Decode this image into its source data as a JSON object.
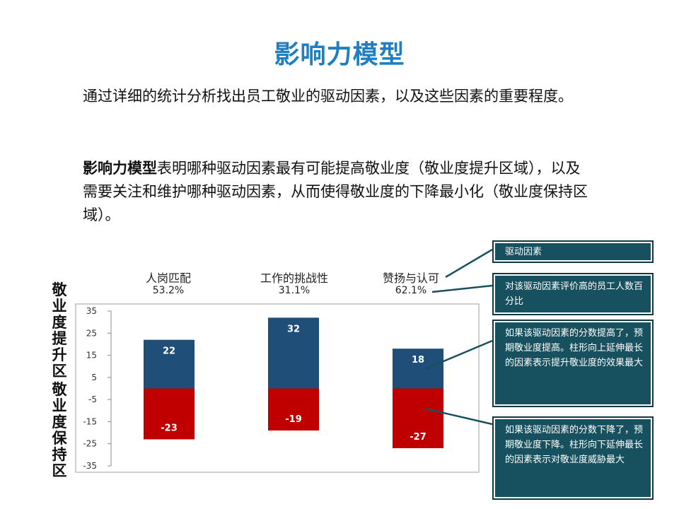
{
  "title": "影响力模型",
  "para1": "通过详细的统计分析找出员工敬业的驱动因素，以及这些因素的重要程度。",
  "para2_bold": "影响力模型",
  "para2_rest": "表明哪种驱动因素最有可能提高敬业度（敬业度提升区域），以及需要关注和维护哪种驱动因素，从而使得敬业度的下降最小化（敬业度保持区域）。",
  "ylabel_top": [
    "敬",
    "业",
    "度",
    "提",
    "升",
    "区"
  ],
  "ylabel_bottom": [
    "敬",
    "业",
    "度",
    "保",
    "持",
    "区"
  ],
  "callouts": {
    "driver": "驱动因素",
    "percent": "对该驱动因素评价高的员工人数百分比",
    "up": "如果该驱动因素的分数提高了，预期敬业度提高。柱形向上延伸最长的因素表示提升敬业度的效果最大",
    "down": "如果该驱动因素的分数下降了，预期敬业度下降。柱形向下延伸最长的因素表示对敬业度威胁最大"
  },
  "colors": {
    "title": "#1f7fc2",
    "positive": "#1f4e79",
    "negative": "#c00000",
    "callout_bg": "#17505e"
  },
  "chart_data": {
    "type": "bar",
    "categories": [
      "人岗匹配",
      "工作的挑战性",
      "赞扬与认可"
    ],
    "category_percent": [
      "53.2%",
      "31.1%",
      "62.1%"
    ],
    "series": [
      {
        "values": [
          22,
          32,
          18
        ],
        "labels": [
          "22",
          "32",
          "18"
        ]
      },
      {
        "values": [
          -23,
          -19,
          -27
        ],
        "labels": [
          "-23",
          "-19",
          "-27"
        ]
      }
    ],
    "yticks": [
      "35",
      "25",
      "15",
      "5",
      "-5",
      "-15",
      "-25",
      "-35"
    ],
    "ylim": [
      -35,
      35
    ],
    "grid": false,
    "legend": "none"
  }
}
